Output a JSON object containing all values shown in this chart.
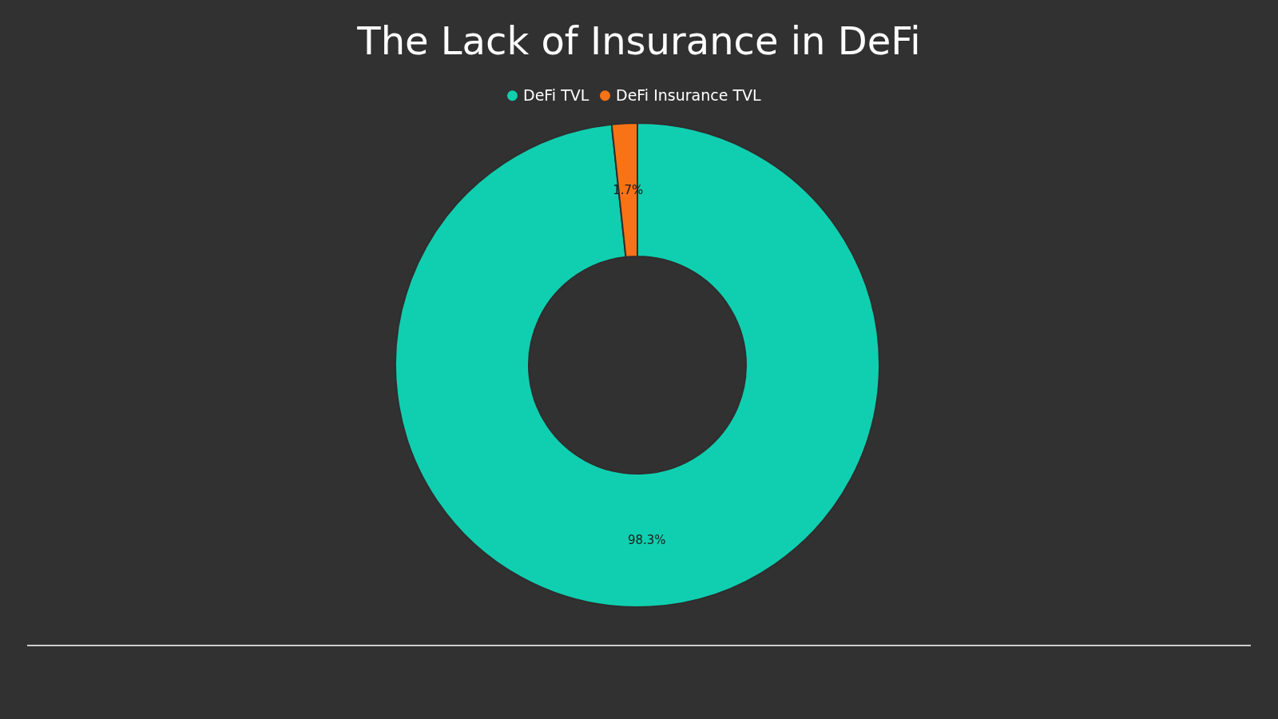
{
  "chart_data": {
    "type": "donut",
    "title": "The Lack of Insurance in DeFi",
    "categories": [
      "DeFi TVL",
      "DeFi Insurance TVL"
    ],
    "values": [
      98.3,
      1.7
    ],
    "colors": [
      "#10cfb0",
      "#f87315"
    ],
    "value_labels": [
      "98.3%",
      "1.7%"
    ],
    "legend": "top"
  }
}
